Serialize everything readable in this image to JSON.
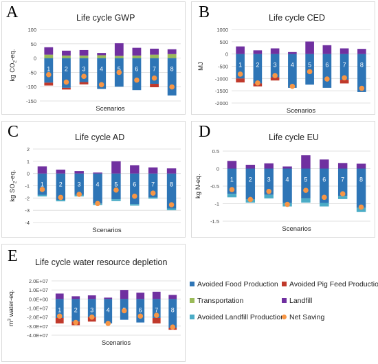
{
  "colors": {
    "avoided_food": "#2e75b6",
    "transportation": "#9bbb59",
    "avoided_landfill": "#4bacc6",
    "avoided_pig_feed": "#c0392b",
    "landfill": "#7030a0",
    "net_saving": "#f79646"
  },
  "legend": {
    "items": [
      {
        "key": "avoided_food",
        "label": "Avoided Food Production",
        "shape": "square"
      },
      {
        "key": "avoided_pig_feed",
        "label": "Avoided Pig Feed Production",
        "shape": "square"
      },
      {
        "key": "transportation",
        "label": "Transportation",
        "shape": "square"
      },
      {
        "key": "landfill",
        "label": "Landfill",
        "shape": "square"
      },
      {
        "key": "avoided_landfill",
        "label": "Avoided Landfill Production",
        "shape": "square"
      },
      {
        "key": "net_saving",
        "label": "Net Saving",
        "shape": "circle"
      }
    ]
  },
  "chart_data": [
    {
      "letter": "A",
      "type": "bar",
      "title": "Life cycle GWP",
      "xlabel": "Scenarios",
      "ylabel": "kg CO2-eq.",
      "ylabel_main": "kg CO",
      "ylabel_sub": "2",
      "ylabel_tail": "-eq.",
      "ylim": [
        -150,
        100
      ],
      "yticks": [
        100,
        50,
        0,
        -50,
        -100,
        -150
      ],
      "yticklabels": [
        "100",
        "50",
        "0",
        "-50",
        "-100",
        "-150"
      ],
      "categories": [
        "1",
        "2",
        "3",
        "4",
        "5",
        "6",
        "7",
        "8"
      ],
      "series": [
        {
          "key": "avoided_food",
          "values": [
            -86,
            -104,
            -84,
            -108,
            -100,
            -112,
            -90,
            -131
          ]
        },
        {
          "key": "avoided_landfill",
          "values": [
            0,
            0,
            0,
            0,
            0,
            0,
            0,
            0
          ]
        },
        {
          "key": "avoided_pig_feed",
          "values": [
            -10,
            -6,
            -8,
            0,
            0,
            0,
            -12,
            0
          ]
        },
        {
          "key": "transportation",
          "values": [
            12,
            9,
            9,
            10,
            8,
            9,
            12,
            14
          ]
        },
        {
          "key": "landfill",
          "values": [
            26,
            17,
            19,
            8,
            44,
            27,
            21,
            17
          ]
        }
      ],
      "net_saving": [
        -58,
        -84,
        -64,
        -93,
        -50,
        -77,
        -70,
        -101
      ]
    },
    {
      "letter": "B",
      "type": "bar",
      "title": "Life cycle CED",
      "xlabel": "Scenarios",
      "ylabel": "MJ",
      "ylabel_main": "MJ",
      "ylabel_sub": "",
      "ylabel_tail": "",
      "ylim": [
        -2000,
        1000
      ],
      "yticks": [
        1000,
        500,
        0,
        -500,
        -1000,
        -1500,
        -2000
      ],
      "yticklabels": [
        "1000",
        "500",
        "0",
        "-500",
        "-1000",
        "-1500",
        "-2000"
      ],
      "categories": [
        "1",
        "2",
        "3",
        "4",
        "5",
        "6",
        "7",
        "8"
      ],
      "series": [
        {
          "key": "avoided_food",
          "values": [
            -1000,
            -1200,
            -950,
            -1380,
            -1250,
            -1380,
            -1050,
            -1550
          ]
        },
        {
          "key": "avoided_landfill",
          "values": [
            0,
            0,
            0,
            0,
            0,
            0,
            0,
            0
          ]
        },
        {
          "key": "avoided_pig_feed",
          "values": [
            -160,
            -120,
            -130,
            0,
            0,
            0,
            -150,
            0
          ]
        },
        {
          "key": "transportation",
          "values": [
            0,
            0,
            0,
            0,
            0,
            0,
            0,
            0
          ]
        },
        {
          "key": "landfill",
          "values": [
            310,
            150,
            230,
            80,
            510,
            360,
            230,
            210
          ]
        }
      ],
      "net_saving": [
        -820,
        -1180,
        -880,
        -1320,
        -720,
        -1020,
        -970,
        -1400
      ]
    },
    {
      "letter": "C",
      "type": "bar",
      "title": "Life cycle AD",
      "xlabel": "Scenarios",
      "ylabel": "kg SO2-eq.",
      "ylabel_main": "kg SO",
      "ylabel_sub": "2",
      "ylabel_tail": "-eq.",
      "ylim": [
        -4,
        2
      ],
      "yticks": [
        2,
        1,
        0,
        -1,
        -2,
        -3,
        -4
      ],
      "yticklabels": [
        "2",
        "1",
        "0",
        "-1",
        "-2",
        "-3",
        "-4"
      ],
      "categories": [
        "1",
        "2",
        "3",
        "4",
        "5",
        "6",
        "7",
        "8"
      ],
      "series": [
        {
          "key": "avoided_food",
          "values": [
            -1.75,
            -2.15,
            -1.75,
            -2.45,
            -2.1,
            -2.5,
            -1.95,
            -2.85
          ]
        },
        {
          "key": "avoided_landfill",
          "values": [
            -0.12,
            -0.12,
            -0.12,
            -0.12,
            -0.15,
            -0.12,
            -0.1,
            -0.15
          ]
        },
        {
          "key": "avoided_pig_feed",
          "values": [
            0,
            0,
            0,
            0,
            0,
            0,
            0,
            0
          ]
        },
        {
          "key": "transportation",
          "values": [
            0,
            0,
            0,
            0,
            0,
            0,
            0,
            0
          ]
        },
        {
          "key": "landfill",
          "values": [
            0.58,
            0.32,
            0.2,
            0.08,
            1.0,
            0.68,
            0.5,
            0.42
          ]
        }
      ],
      "net_saving": [
        -1.3,
        -1.95,
        -1.7,
        -2.45,
        -1.35,
        -1.85,
        -1.6,
        -2.55
      ]
    },
    {
      "letter": "D",
      "type": "bar",
      "title": "Life cycle EU",
      "xlabel": "Scenarios",
      "ylabel": "kg N-eq.",
      "ylabel_main": "kg N-eq.",
      "ylabel_sub": "",
      "ylabel_tail": "",
      "ylim": [
        -1.5,
        0.5
      ],
      "yticks": [
        0.5,
        0,
        -0.5,
        -1,
        -1.5
      ],
      "yticklabels": [
        "0.5",
        "0",
        "-0.5",
        "-1",
        "-1.5"
      ],
      "categories": [
        "1",
        "2",
        "3",
        "4",
        "5",
        "6",
        "7",
        "8"
      ],
      "series": [
        {
          "key": "avoided_food",
          "values": [
            -0.72,
            -0.88,
            -0.75,
            -0.98,
            -0.85,
            -0.98,
            -0.78,
            -1.12
          ]
        },
        {
          "key": "avoided_landfill",
          "values": [
            -0.1,
            -0.09,
            -0.1,
            -0.1,
            -0.12,
            -0.1,
            -0.09,
            -0.12
          ]
        },
        {
          "key": "avoided_pig_feed",
          "values": [
            0,
            0,
            0,
            0,
            0,
            0,
            0,
            0
          ]
        },
        {
          "key": "transportation",
          "values": [
            0,
            0,
            0,
            0,
            0,
            0,
            0,
            0
          ]
        },
        {
          "key": "landfill",
          "values": [
            0.22,
            0.11,
            0.15,
            0.06,
            0.38,
            0.26,
            0.16,
            0.14
          ]
        }
      ],
      "net_saving": [
        -0.6,
        -0.88,
        -0.65,
        -1.02,
        -0.62,
        -0.82,
        -0.72,
        -1.1
      ]
    },
    {
      "letter": "E",
      "type": "bar",
      "title": "Life cycle water resource depletion",
      "xlabel": "Scenarios",
      "ylabel": "m3 water-eq.",
      "ylabel_main": "m",
      "ylabel_sub": "3",
      "ylabel_tail": " water-eq.",
      "ylim": [
        -40000000,
        20000000
      ],
      "yticks": [
        20000000,
        10000000,
        0,
        -10000000,
        -20000000,
        -30000000,
        -40000000
      ],
      "yticklabels": [
        "2.0E+07",
        "1.0E+07",
        "0.0E+00",
        "-1.0E+07",
        "-2.0E+07",
        "-3.0E+07",
        "-4.0E+07"
      ],
      "categories": [
        "1",
        "2",
        "3",
        "4",
        "5",
        "6",
        "7",
        "8"
      ],
      "series": [
        {
          "key": "avoided_food",
          "values": [
            -21000000,
            -25000000,
            -20000000,
            -27000000,
            -23000000,
            -26000000,
            -21000000,
            -32000000
          ]
        },
        {
          "key": "avoided_landfill",
          "values": [
            0,
            0,
            0,
            0,
            0,
            0,
            0,
            0
          ]
        },
        {
          "key": "avoided_pig_feed",
          "values": [
            -6000000,
            -4000000,
            -5000000,
            0,
            0,
            0,
            -6000000,
            -2000000
          ]
        },
        {
          "key": "transportation",
          "values": [
            0,
            0,
            0,
            0,
            0,
            0,
            0,
            0
          ]
        },
        {
          "key": "landfill",
          "values": [
            6000000,
            3000000,
            4000000,
            1500000,
            10000000,
            7000000,
            8000000,
            4500000
          ]
        }
      ],
      "net_saving": [
        -19000000,
        -26000000,
        -20000000,
        -27000000,
        -13000000,
        -19000000,
        -18000000,
        -31000000
      ]
    }
  ]
}
